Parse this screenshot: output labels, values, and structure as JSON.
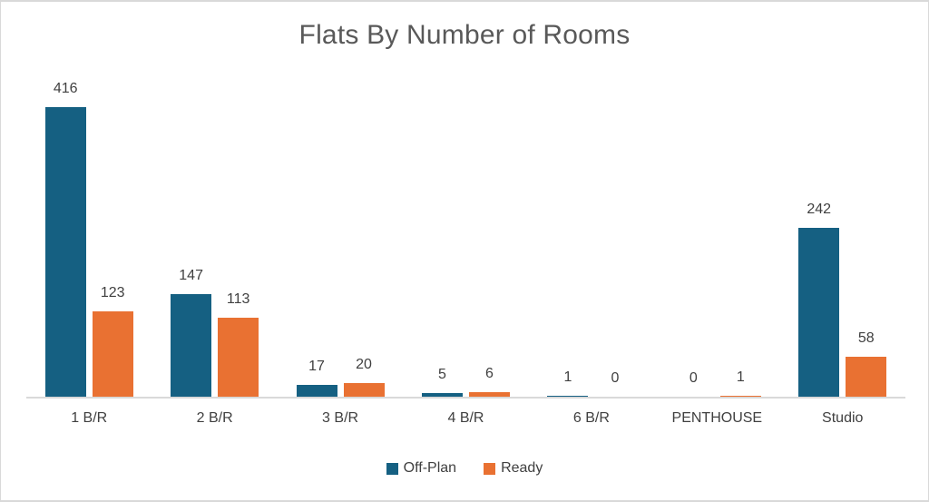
{
  "chart_data": {
    "type": "bar",
    "title": "Flats By Number of Rooms",
    "categories": [
      "1 B/R",
      "2 B/R",
      "3 B/R",
      "4 B/R",
      "6 B/R",
      "PENTHOUSE",
      "Studio"
    ],
    "series": [
      {
        "name": "Off-Plan",
        "color": "#156082",
        "values": [
          416,
          147,
          17,
          5,
          1,
          0,
          242
        ]
      },
      {
        "name": "Ready",
        "color": "#E97132",
        "values": [
          123,
          113,
          20,
          6,
          0,
          1,
          58
        ]
      }
    ],
    "xlabel": "",
    "ylabel": "",
    "ylim": [
      0,
      450
    ],
    "grid": false,
    "data_labels": true,
    "legend_position": "bottom",
    "axis_line_color": "#d9d9d9",
    "title_color": "#595959",
    "label_color": "#404040"
  }
}
